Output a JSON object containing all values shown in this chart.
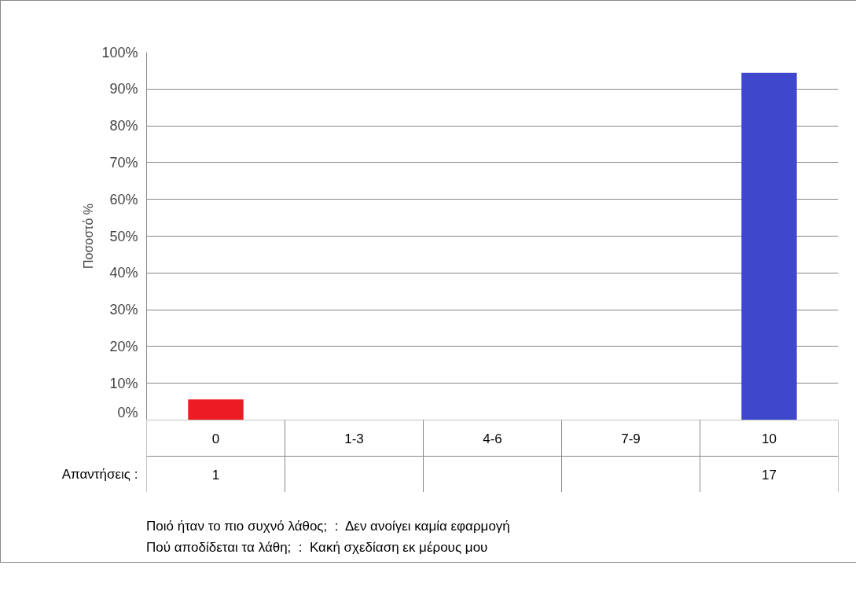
{
  "chart_data": [
    {
      "type": "bar",
      "ylabel": "Ποσοστό %",
      "categories": [
        "0",
        "1-3",
        "4-6",
        "7-9",
        "10"
      ],
      "values": [
        5.6,
        0,
        0,
        0,
        94.4
      ],
      "colors": [
        "#ed1c24",
        "#ed1c24",
        "#ed1c24",
        "#ed1c24",
        "#3f48cc"
      ],
      "ylim": [
        0,
        100
      ],
      "yticks": [
        {
          "value": 0,
          "label": "0%"
        },
        {
          "value": 10,
          "label": "10%"
        },
        {
          "value": 20,
          "label": "20%"
        },
        {
          "value": 30,
          "label": "30%"
        },
        {
          "value": 40,
          "label": "40%"
        },
        {
          "value": 50,
          "label": "50%"
        },
        {
          "value": 60,
          "label": "60%"
        },
        {
          "value": 70,
          "label": "70%"
        },
        {
          "value": 80,
          "label": "80%"
        },
        {
          "value": 90,
          "label": "90%"
        },
        {
          "value": 100,
          "label": "100%"
        }
      ],
      "grid": "y",
      "annotations": [
        "Ποιό ήταν το πιο συχνό λάθος;  :  Δεν ανοίγει καμία εφαρμογή",
        "Πού αποδίδεται τα λάθη;  :  Κακή σχεδίαση εκ μέρους μου"
      ]
    },
    {
      "type": "other",
      "title": "Απαντήσεις :",
      "values": [
        1,
        null,
        null,
        null,
        17
      ],
      "data_labels": true
    }
  ]
}
